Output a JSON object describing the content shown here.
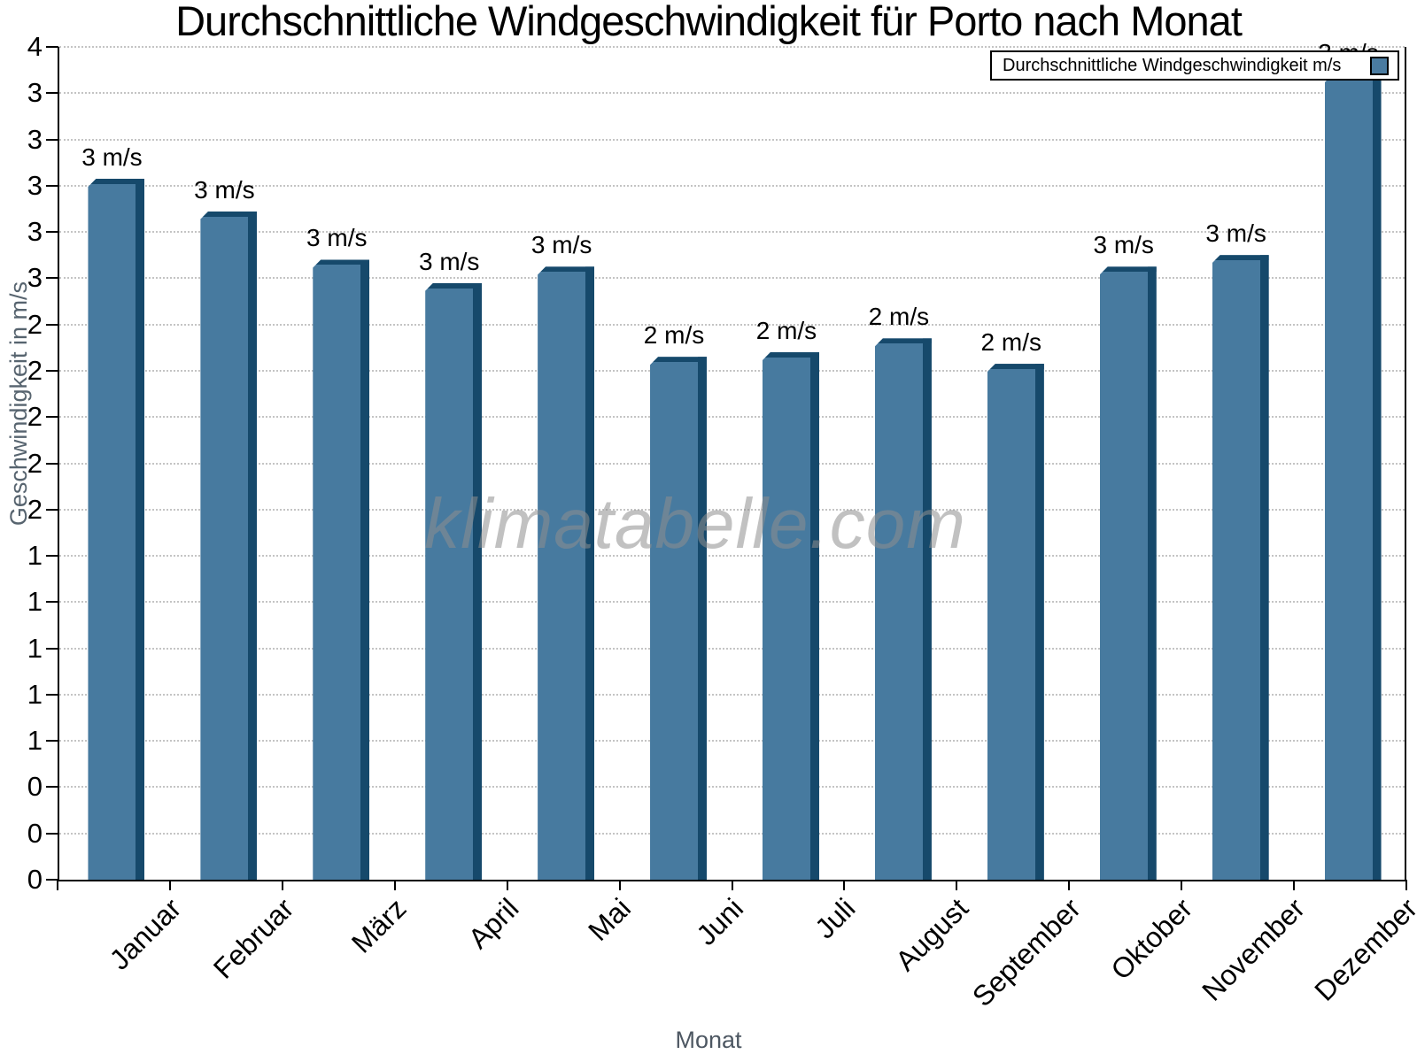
{
  "title": "Durchschnittliche Windgeschwindigkeit für Porto nach Monat",
  "watermark": "klimatabelle.com",
  "legend": {
    "label": "Durchschnittliche Windgeschwindigkeit m/s",
    "swatch_color": "#4a7ba0",
    "position": "top-right"
  },
  "chart_data": {
    "type": "bar",
    "title": "Durchschnittliche Windgeschwindigkeit für Porto nach Monat",
    "xlabel": "Monat",
    "ylabel": "Geschwindigkeit in m/s",
    "categories": [
      "Januar",
      "Februar",
      "März",
      "April",
      "Mai",
      "Juni",
      "Juli",
      "August",
      "September",
      "Oktober",
      "November",
      "Dezember"
    ],
    "values": [
      3.03,
      2.89,
      2.68,
      2.58,
      2.65,
      2.26,
      2.28,
      2.34,
      2.23,
      2.65,
      2.7,
      3.48
    ],
    "bar_labels": [
      "3 m/s",
      "3 m/s",
      "3 m/s",
      "3 m/s",
      "3 m/s",
      "2 m/s",
      "2 m/s",
      "2 m/s",
      "2 m/s",
      "3 m/s",
      "3 m/s",
      "3 m/s"
    ],
    "series_name": "Durchschnittliche Windgeschwindigkeit m/s",
    "ylim": [
      0,
      3.6
    ],
    "ytick_step": 0.2,
    "ytick_labels_top_to_bottom": [
      "4",
      "3",
      "3",
      "3",
      "3",
      "3",
      "2",
      "2",
      "2",
      "2",
      "2",
      "1",
      "1",
      "1",
      "1",
      "1",
      "0",
      "0",
      "0"
    ],
    "grid": "horizontal-dotted",
    "legend_position": "top-right",
    "colors": {
      "bar_fill": "#477a9f",
      "bar_edge_dark": "#16496b",
      "gridline": "#c4c4c4",
      "axis": "#000000",
      "axis_title": "#57646f",
      "watermark": "#8f8f8f"
    }
  }
}
